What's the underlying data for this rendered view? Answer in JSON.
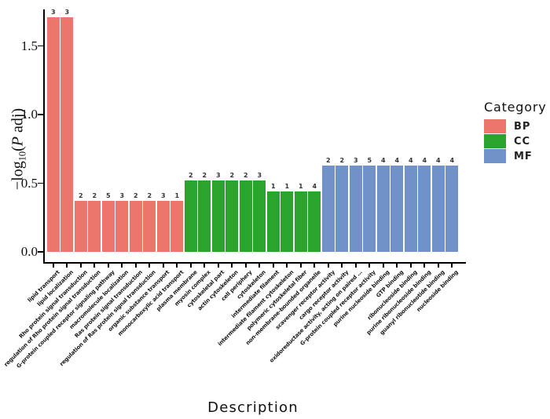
{
  "figure": {
    "background": "#ffffff",
    "y_axis": {
      "title_prefix": "−log",
      "title_sub": "10",
      "title_open": "(",
      "title_italic": "P",
      "title_rest": " adj)",
      "ticks": [
        "0.0",
        "0.5",
        "1.0",
        "1.5"
      ]
    },
    "x_axis": {
      "title": "Description"
    },
    "legend": {
      "title": "Category",
      "items": [
        {
          "label": "BP",
          "color": "#EC766B"
        },
        {
          "label": "CC",
          "color": "#2AA42D"
        },
        {
          "label": "MF",
          "color": "#7092C8"
        }
      ]
    }
  },
  "chart_data": {
    "type": "bar",
    "title": "",
    "xlabel": "Description",
    "ylabel": "-log10(P adj)",
    "ylim": [
      0,
      1.77
    ],
    "yticks": [
      0,
      0.5,
      1.0,
      1.5
    ],
    "grid": false,
    "legend_position": "right",
    "legend_title": "Category",
    "category_colors": {
      "BP": "#EC766B",
      "CC": "#2AA42D",
      "MF": "#7092C8"
    },
    "bars": [
      {
        "label": "lipid transport",
        "category": "BP",
        "value": 1.71,
        "count": 3
      },
      {
        "label": "lipid localization",
        "category": "BP",
        "value": 1.71,
        "count": 3
      },
      {
        "label": "Rho protein signal transduction",
        "category": "BP",
        "value": 0.37,
        "count": 2
      },
      {
        "label": "regulation of Rho protein signal transduction",
        "category": "BP",
        "value": 0.37,
        "count": 2
      },
      {
        "label": "G-protein coupled receptor signaling pathway",
        "category": "BP",
        "value": 0.37,
        "count": 5
      },
      {
        "label": "macromolecule localization",
        "category": "BP",
        "value": 0.37,
        "count": 3
      },
      {
        "label": "Ras protein signal transduction",
        "category": "BP",
        "value": 0.37,
        "count": 2
      },
      {
        "label": "regulation of Ras protein signal transduction",
        "category": "BP",
        "value": 0.37,
        "count": 2
      },
      {
        "label": "organic substance transport",
        "category": "BP",
        "value": 0.37,
        "count": 3
      },
      {
        "label": "monocarboxylic acid transport",
        "category": "BP",
        "value": 0.37,
        "count": 1
      },
      {
        "label": "plasma membrane",
        "category": "CC",
        "value": 0.52,
        "count": 2
      },
      {
        "label": "myosin complex",
        "category": "CC",
        "value": 0.52,
        "count": 2
      },
      {
        "label": "cytoskeletal part",
        "category": "CC",
        "value": 0.52,
        "count": 3
      },
      {
        "label": "actin cytoskeleton",
        "category": "CC",
        "value": 0.52,
        "count": 2
      },
      {
        "label": "cell periphery",
        "category": "CC",
        "value": 0.52,
        "count": 2
      },
      {
        "label": "cytoskeleton",
        "category": "CC",
        "value": 0.52,
        "count": 3
      },
      {
        "label": "intermediate filament",
        "category": "CC",
        "value": 0.44,
        "count": 1
      },
      {
        "label": "intermediate filament cytoskeleton",
        "category": "CC",
        "value": 0.44,
        "count": 1
      },
      {
        "label": "polymeric cytoskeletal fiber",
        "category": "CC",
        "value": 0.44,
        "count": 1
      },
      {
        "label": "non-membrane-bounded organelle",
        "category": "CC",
        "value": 0.44,
        "count": 4
      },
      {
        "label": "scavenger receptor activity",
        "category": "MF",
        "value": 0.63,
        "count": 2
      },
      {
        "label": "cargo receptor activity",
        "category": "MF",
        "value": 0.63,
        "count": 2
      },
      {
        "label": "oxidoreductase activity, acting on paired …",
        "category": "MF",
        "value": 0.63,
        "count": 3
      },
      {
        "label": "G-protein coupled receptor activity",
        "category": "MF",
        "value": 0.63,
        "count": 5
      },
      {
        "label": "purine nucleoside binding",
        "category": "MF",
        "value": 0.63,
        "count": 4
      },
      {
        "label": "GTP binding",
        "category": "MF",
        "value": 0.63,
        "count": 4
      },
      {
        "label": "ribonucleoside binding",
        "category": "MF",
        "value": 0.63,
        "count": 4
      },
      {
        "label": "purine ribonucleoside binding",
        "category": "MF",
        "value": 0.63,
        "count": 4
      },
      {
        "label": "guanyl ribonucleotide binding",
        "category": "MF",
        "value": 0.63,
        "count": 4
      },
      {
        "label": "nucleoside binding",
        "category": "MF",
        "value": 0.63,
        "count": 4
      }
    ]
  }
}
